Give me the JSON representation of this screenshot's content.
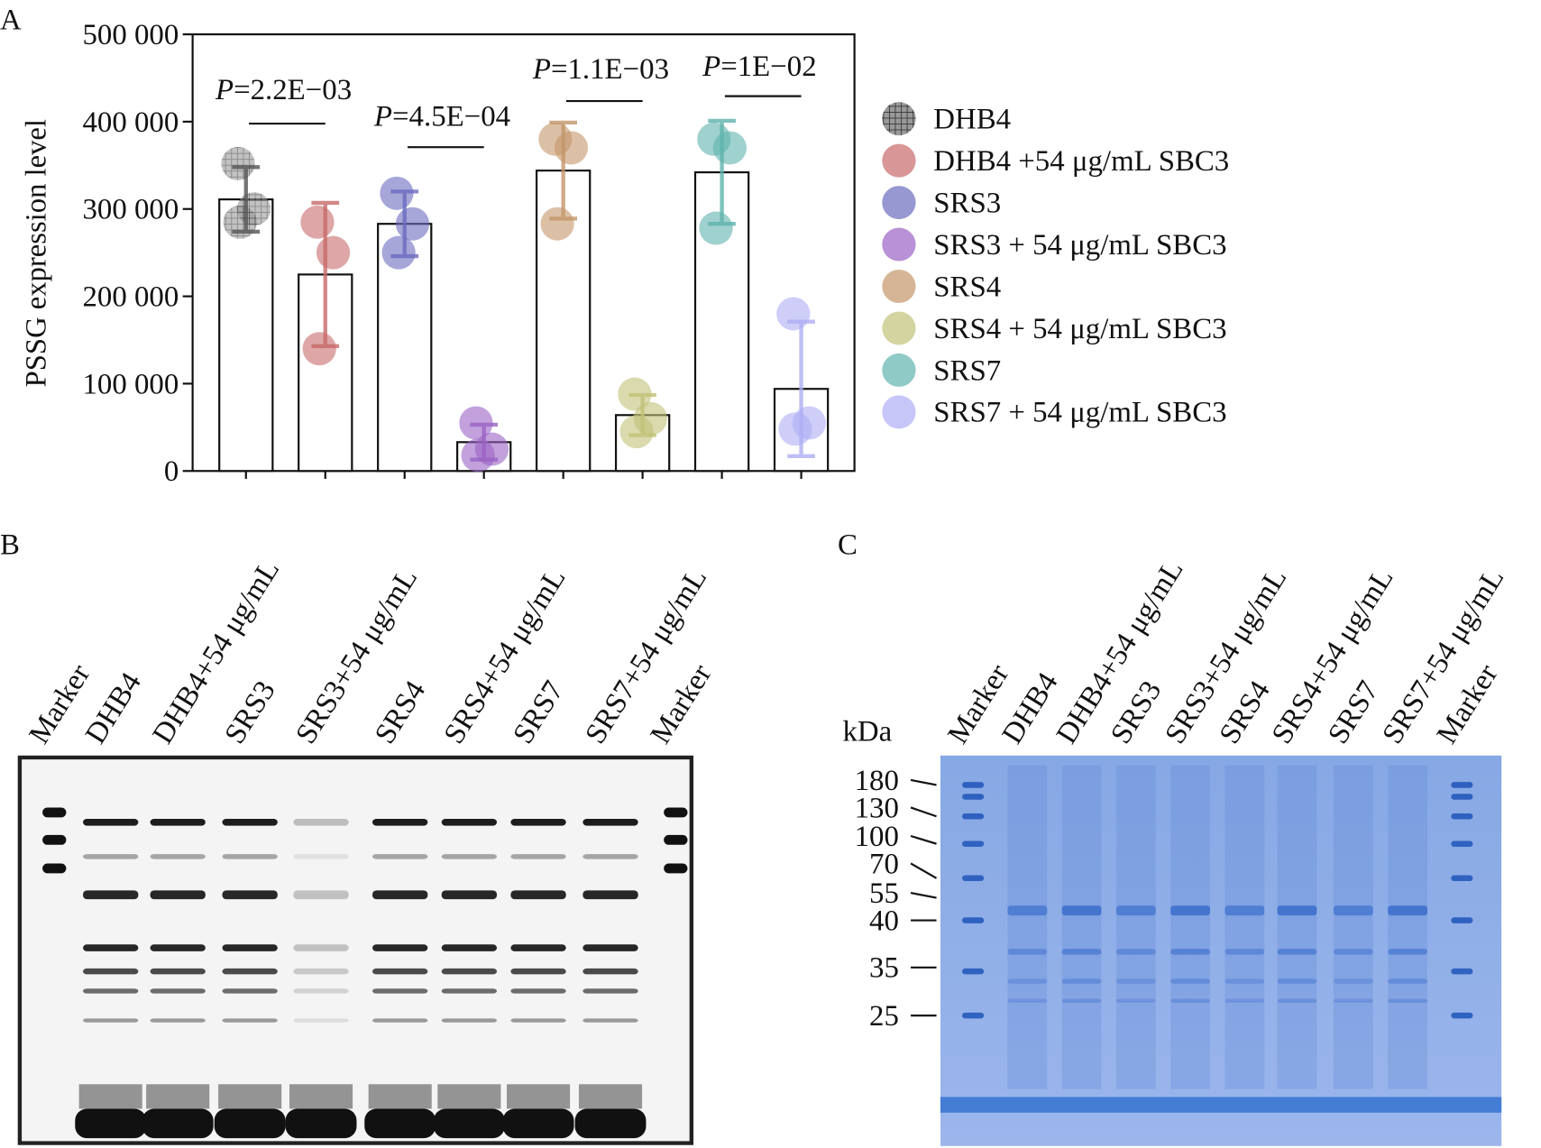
{
  "chart_data": {
    "type": "bar",
    "panel": "A",
    "y_label": "PSSG expression level",
    "ylim": [
      0,
      500000
    ],
    "yticks": [
      0,
      {
        "value": 100000,
        "label": "100 000"
      },
      {
        "value": 200000,
        "label": "200 000"
      },
      {
        "value": 300000,
        "label": "300 000"
      },
      {
        "value": 400000,
        "label": "400 000"
      },
      {
        "value": 500000,
        "label": "500 000"
      }
    ],
    "series": [
      {
        "name": "DHB4",
        "color": "#555555",
        "hatch": true,
        "value": 311000,
        "error": 37000,
        "points": [
          352000,
          300000,
          285000
        ]
      },
      {
        "name": "DHB4 +54 μg/mL SBC3",
        "color": "#c86a6a",
        "value": 225000,
        "error": 82000,
        "points": [
          285000,
          250000,
          140000
        ]
      },
      {
        "name": "SRS3",
        "color": "#6b6bbf",
        "value": 283000,
        "error": 37000,
        "points": [
          318000,
          283000,
          250000
        ]
      },
      {
        "name": "SRS3 + 54 μg/mL SBC3",
        "color": "#9a62c4",
        "value": 33000,
        "error": 20000,
        "points": [
          55000,
          25000,
          18000
        ]
      },
      {
        "name": "SRS4",
        "color": "#c4966a",
        "value": 344000,
        "error": 55000,
        "points": [
          380000,
          370000,
          283000
        ]
      },
      {
        "name": "SRS4 + 54 μg/mL SBC3",
        "color": "#c2c278",
        "value": 64000,
        "error": 23000,
        "points": [
          88000,
          60000,
          45000
        ]
      },
      {
        "name": "SRS7",
        "color": "#5fb3ae",
        "value": 342000,
        "error": 59000,
        "points": [
          380000,
          370000,
          278000
        ]
      },
      {
        "name": "SRS7 + 54 μg/mL SBC3",
        "color": "#aeaef5",
        "value": 94000,
        "error": 77000,
        "points": [
          180000,
          55000,
          48000
        ]
      }
    ],
    "annotations": [
      {
        "prefix": "P",
        "text": "=2.2E−03"
      },
      {
        "prefix": "P",
        "text": "=4.5E−04"
      },
      {
        "prefix": "P",
        "text": "=1.1E−03"
      },
      {
        "prefix": "P",
        "text": "=1E−02"
      }
    ]
  },
  "gel_b": {
    "panel": "B",
    "lanes": [
      "Marker",
      "DHB4",
      "DHB4+54 μg/mL",
      "SRS3",
      "SRS3+54 μg/mL",
      "SRS4",
      "SRS4+54 μg/mL",
      "SRS7",
      "SRS7+54 μg/mL",
      "Marker"
    ]
  },
  "gel_c": {
    "panel": "C",
    "unit": "kDa",
    "lanes": [
      "Marker",
      "DHB4",
      "DHB4+54 μg/mL",
      "SRS3",
      "SRS3+54 μg/mL",
      "SRS4",
      "SRS4+54 μg/mL",
      "SRS7",
      "SRS7+54 μg/mL",
      "Marker"
    ],
    "markers": [
      180,
      130,
      100,
      70,
      55,
      40,
      35,
      25
    ]
  }
}
